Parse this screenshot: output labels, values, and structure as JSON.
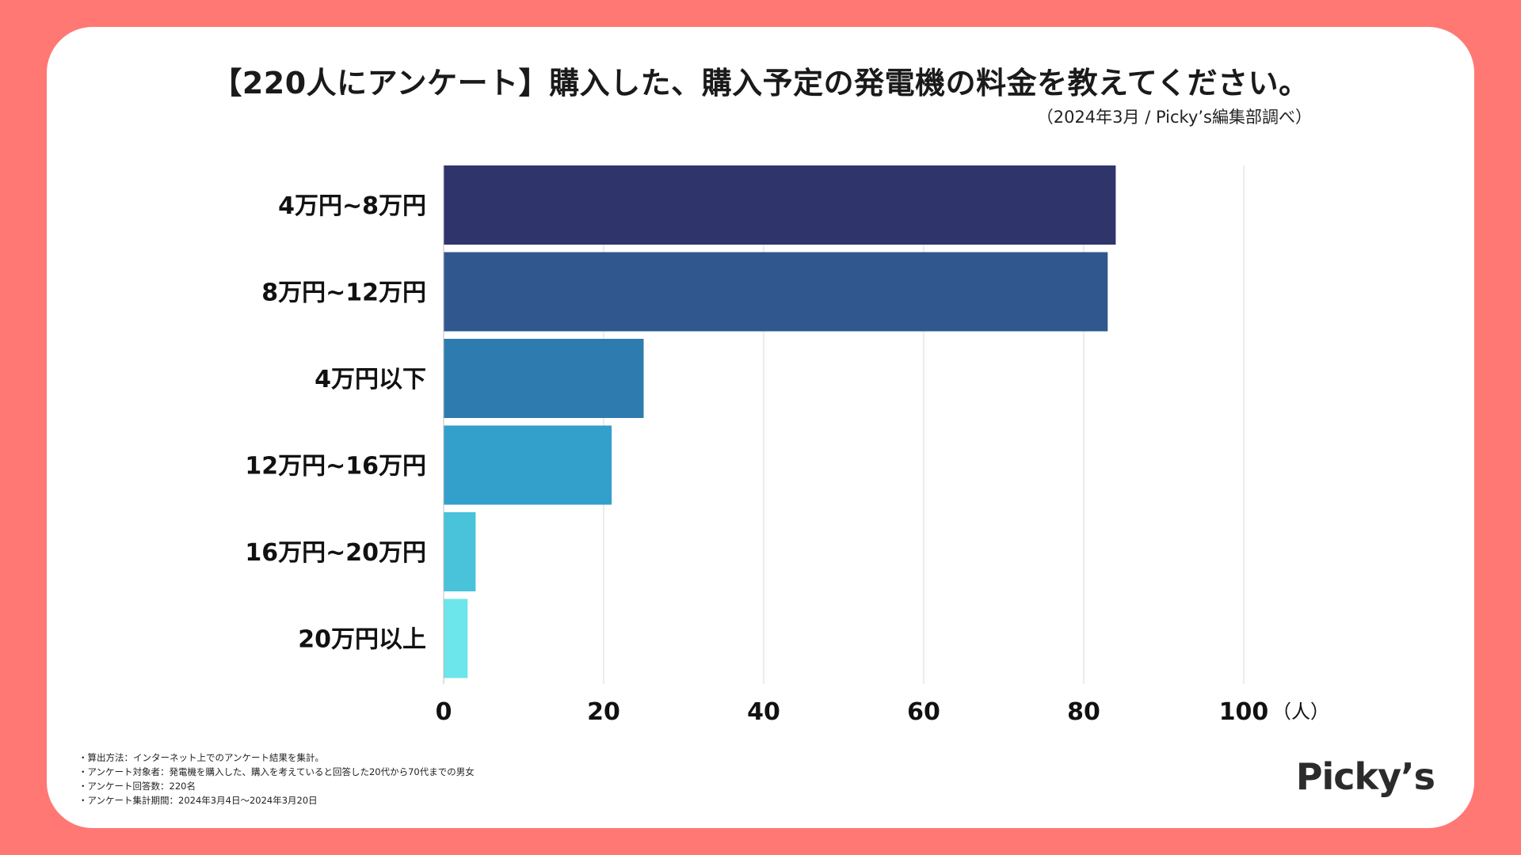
{
  "header": {
    "title": "【220人にアンケート】購入した、購入予定の発電機の料金を教えてください。",
    "source": "（2024年3月 / Picky’s編集部調べ）"
  },
  "chart_data": {
    "type": "bar",
    "orientation": "horizontal",
    "categories": [
      "4万円~8万円",
      "8万円~12万円",
      "4万円以下",
      "12万円~16万円",
      "16万円~20万円",
      "20万円以上"
    ],
    "values": [
      84,
      83,
      25,
      21,
      4,
      3
    ],
    "colors": [
      "#2f346b",
      "#30588e",
      "#2d7baf",
      "#339fcb",
      "#49c3da",
      "#6ce6ea"
    ],
    "xlim": [
      0,
      100
    ],
    "xticks": [
      0,
      20,
      40,
      60,
      80,
      100
    ],
    "xunit": "（人）",
    "grid": true
  },
  "notes": [
    "・算出方法：インターネット上でのアンケート結果を集計。",
    "・アンケート対象者：発電機を購入した、購入を考えていると回答した20代から70代までの男女",
    "・アンケート回答数：220名",
    "・アンケート集計期間：2024年3月4日〜2024年3月20日"
  ],
  "brand": {
    "logo_text": "Picky’s"
  }
}
